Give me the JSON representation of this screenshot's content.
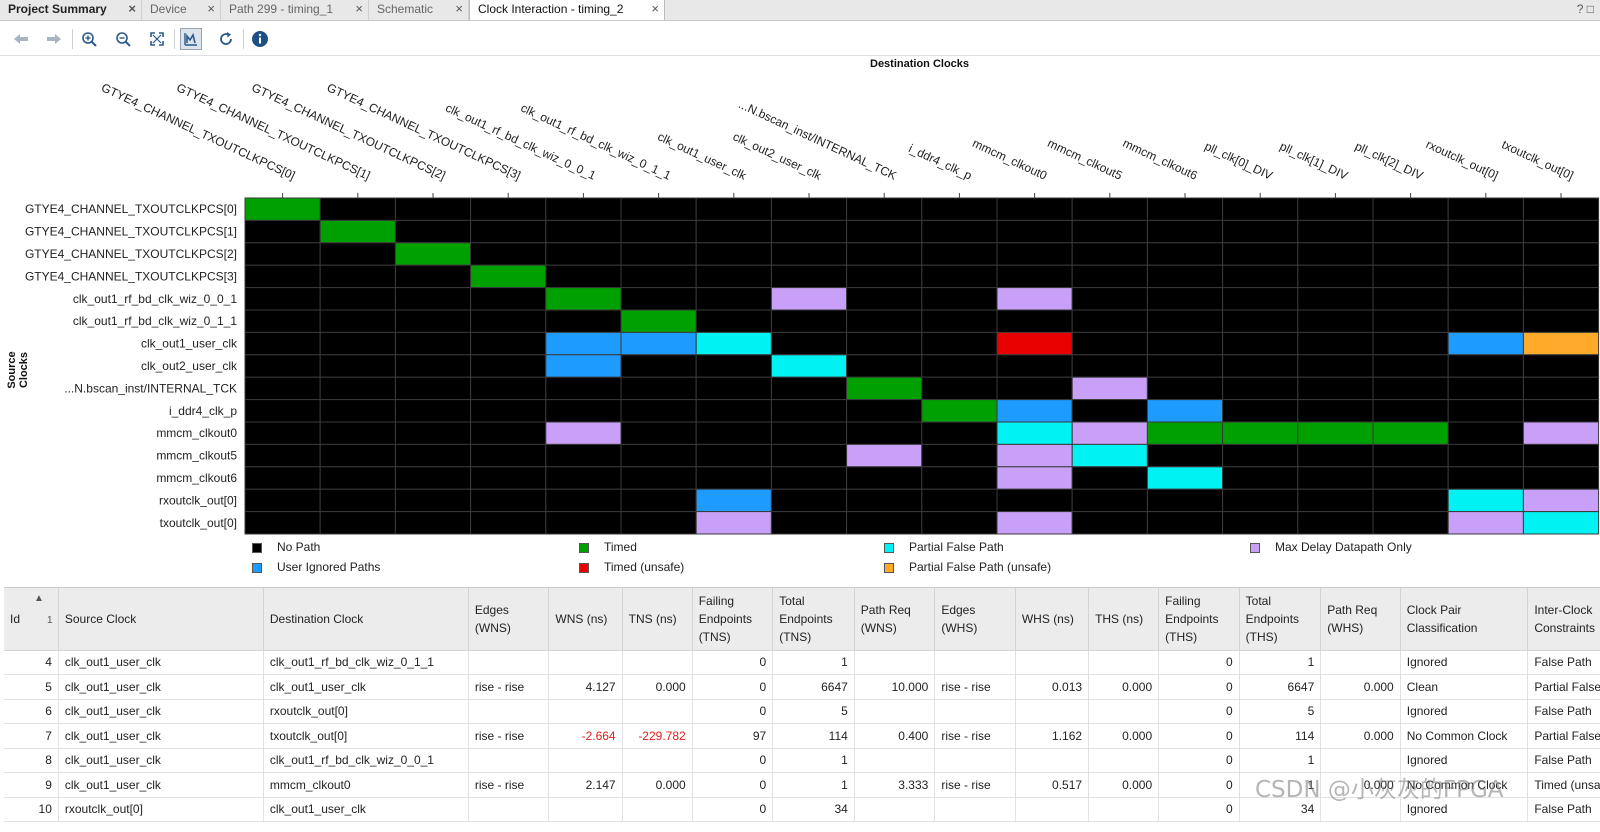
{
  "tabs": [
    {
      "label": "Project Summary",
      "close": "×"
    },
    {
      "label": "Device",
      "close": "×"
    },
    {
      "label": "Path 299 - timing_1",
      "close": "×"
    },
    {
      "label": "Schematic",
      "close": "×"
    },
    {
      "label": "Clock Interaction - timing_2",
      "close": "×"
    }
  ],
  "window_controls": "? □",
  "toolbar": [
    {
      "icon": "back-arrow-icon"
    },
    {
      "icon": "forward-arrow-icon"
    },
    {
      "icon": "zoom-in-icon"
    },
    {
      "icon": "zoom-out-icon"
    },
    {
      "icon": "zoom-fit-icon"
    },
    {
      "icon": "chart-toggle-icon"
    },
    {
      "icon": "refresh-icon"
    },
    {
      "icon": "info-icon"
    }
  ],
  "matrix": {
    "dest_title": "Destination Clocks",
    "source_title": "Source Clocks",
    "columns": [
      "GTYE4_CHANNEL_TXOUTCLKPCS[0]",
      "GTYE4_CHANNEL_TXOUTCLKPCS[1]",
      "GTYE4_CHANNEL_TXOUTCLKPCS[2]",
      "GTYE4_CHANNEL_TXOUTCLKPCS[3]",
      "clk_out1_rf_bd_clk_wiz_0_0_1",
      "clk_out1_rf_bd_clk_wiz_0_1_1",
      "clk_out1_user_clk",
      "clk_out2_user_clk",
      "...N.bscan_inst/INTERNAL_TCK",
      "i_ddr4_clk_p",
      "mmcm_clkout0",
      "mmcm_clkout5",
      "mmcm_clkout6",
      "pll_clk[0]_DIV",
      "pll_clk[1]_DIV",
      "pll_clk[2]_DIV",
      "rxoutclk_out[0]",
      "txoutclk_out[0]"
    ],
    "rows": [
      "GTYE4_CHANNEL_TXOUTCLKPCS[0]",
      "GTYE4_CHANNEL_TXOUTCLKPCS[1]",
      "GTYE4_CHANNEL_TXOUTCLKPCS[2]",
      "GTYE4_CHANNEL_TXOUTCLKPCS[3]",
      "clk_out1_rf_bd_clk_wiz_0_0_1",
      "clk_out1_rf_bd_clk_wiz_0_1_1",
      "clk_out1_user_clk",
      "clk_out2_user_clk",
      "...N.bscan_inst/INTERNAL_TCK",
      "i_ddr4_clk_p",
      "mmcm_clkout0",
      "mmcm_clkout5",
      "mmcm_clkout6",
      "rxoutclk_out[0]",
      "txoutclk_out[0]"
    ],
    "status_colors": {
      "N": "#000000",
      "T": "#00a000",
      "U": "#1e9bff",
      "R": "#e80000",
      "P": "#00f2f2",
      "O": "#ffaa2a",
      "M": "#c8a0f8"
    },
    "cells": [
      "TNNNNNNNNNNNNNNNNN",
      "NTNNNNNNNNNNNNNNNN",
      "NNTNNNNNNNNNNNNNNN",
      "NNNTNNNNNNNNNNNNNN",
      "NNNNTNNMNNMNNNNNNN",
      "NNNNNTNNNNNNNNNNNN",
      "NNNNUUPNNNRNNNNNUO",
      "NNNNUNNPNNNNNNNNNN",
      "NNNNNNNNTNNMNNNNNN",
      "NNNNNNNNNTUNUNNNNN",
      "NNNNMNNNNNPMTTTTNM",
      "NNNNNNNNMNMPNNNNNN",
      "NNNNNNNNNNMNPNNNNN",
      "NNNNNNUNNNNNNNNNPM",
      "NNNNNNMNNNMNNNNNMP"
    ]
  },
  "legend": [
    {
      "key": "N",
      "label": "No Path"
    },
    {
      "key": "U",
      "label": "User Ignored Paths"
    },
    {
      "key": "T",
      "label": "Timed"
    },
    {
      "key": "R",
      "label": "Timed (unsafe)"
    },
    {
      "key": "P",
      "label": "Partial False Path"
    },
    {
      "key": "O",
      "label": "Partial False Path (unsafe)"
    },
    {
      "key": "M",
      "label": "Max Delay Datapath Only"
    }
  ],
  "table": {
    "headers": [
      "Id",
      "Source Clock",
      "Destination Clock",
      "Edges (WNS)",
      "WNS (ns)",
      "TNS (ns)",
      "Failing Endpoints (TNS)",
      "Total Endpoints (TNS)",
      "Path Req (WNS)",
      "Edges (WHS)",
      "WHS (ns)",
      "THS (ns)",
      "Failing Endpoints (THS)",
      "Total Endpoints (THS)",
      "Path Req (WHS)",
      "Clock Pair Classification",
      "Inter-Clock Constraints"
    ],
    "sort_indicator": "▲",
    "sort_order": "1",
    "rows": [
      [
        "4",
        "clk_out1_user_clk",
        "clk_out1_rf_bd_clk_wiz_0_1_1",
        "",
        "",
        "",
        "0",
        "1",
        "",
        "",
        "",
        "",
        "0",
        "1",
        "",
        "Ignored",
        "False Path"
      ],
      [
        "5",
        "clk_out1_user_clk",
        "clk_out1_user_clk",
        "rise - rise",
        "4.127",
        "0.000",
        "0",
        "6647",
        "10.000",
        "rise - rise",
        "0.013",
        "0.000",
        "0",
        "6647",
        "0.000",
        "Clean",
        "Partial False Path"
      ],
      [
        "6",
        "clk_out1_user_clk",
        "rxoutclk_out[0]",
        "",
        "",
        "",
        "0",
        "5",
        "",
        "",
        "",
        "",
        "0",
        "5",
        "",
        "Ignored",
        "False Path"
      ],
      [
        "7",
        "clk_out1_user_clk",
        "txoutclk_out[0]",
        "rise - rise",
        "-2.664",
        "-229.782",
        "97",
        "114",
        "0.400",
        "rise - rise",
        "1.162",
        "0.000",
        "0",
        "114",
        "0.000",
        "No Common Clock",
        "Partial False Path"
      ],
      [
        "8",
        "clk_out1_user_clk",
        "clk_out1_rf_bd_clk_wiz_0_0_1",
        "",
        "",
        "",
        "0",
        "1",
        "",
        "",
        "",
        "",
        "0",
        "1",
        "",
        "Ignored",
        "False Path"
      ],
      [
        "9",
        "clk_out1_user_clk",
        "mmcm_clkout0",
        "rise - rise",
        "2.147",
        "0.000",
        "0",
        "1",
        "3.333",
        "rise - rise",
        "0.517",
        "0.000",
        "0",
        "1",
        "0.000",
        "No Common Clock",
        "Timed (unsafe)"
      ],
      [
        "10",
        "rxoutclk_out[0]",
        "clk_out1_user_clk",
        "",
        "",
        "",
        "0",
        "34",
        "",
        "",
        "",
        "",
        "0",
        "34",
        "",
        "Ignored",
        "False Path"
      ]
    ]
  },
  "watermark": "CSDN @小灰灰的FPGA"
}
